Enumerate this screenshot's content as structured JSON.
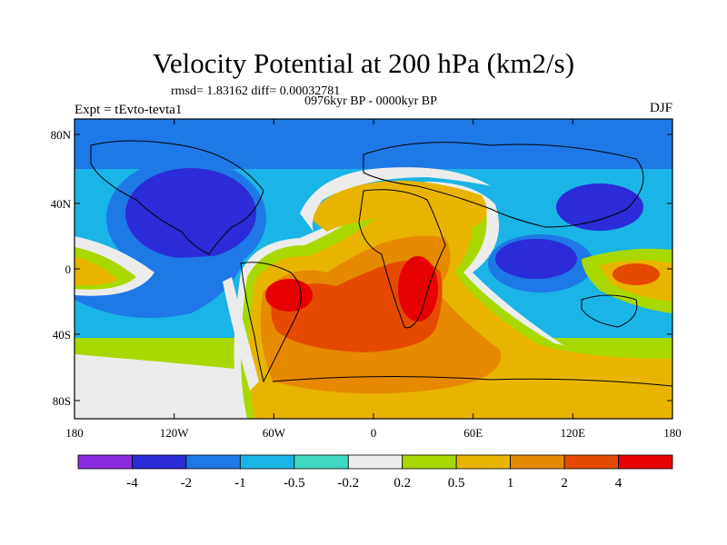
{
  "title": "Velocity Potential at 200 hPa (km2/s)",
  "stats_line": "rmsd= 1.83162 diff= 0.00032781",
  "period": "0976kyr BP - 0000kyr BP",
  "experiment": "Expt = tEvto-tevta1",
  "season": "DJF",
  "lat_ticks": [
    "80N",
    "40N",
    "0",
    "40S",
    "80S"
  ],
  "lon_ticks": [
    "180",
    "120W",
    "60W",
    "0",
    "60E",
    "120E",
    "180"
  ],
  "colorbar": {
    "colors": [
      "#8a2be2",
      "#2b2bd8",
      "#1e78e6",
      "#1ab4e6",
      "#40d8c0",
      "#ececec",
      "#a8d800",
      "#e8b400",
      "#e68a00",
      "#e64a00",
      "#e60000"
    ],
    "labels": [
      "-4",
      "-2",
      "-1",
      "-0.5",
      "-0.2",
      "0.2",
      "0.5",
      "1",
      "2",
      "4"
    ]
  }
}
